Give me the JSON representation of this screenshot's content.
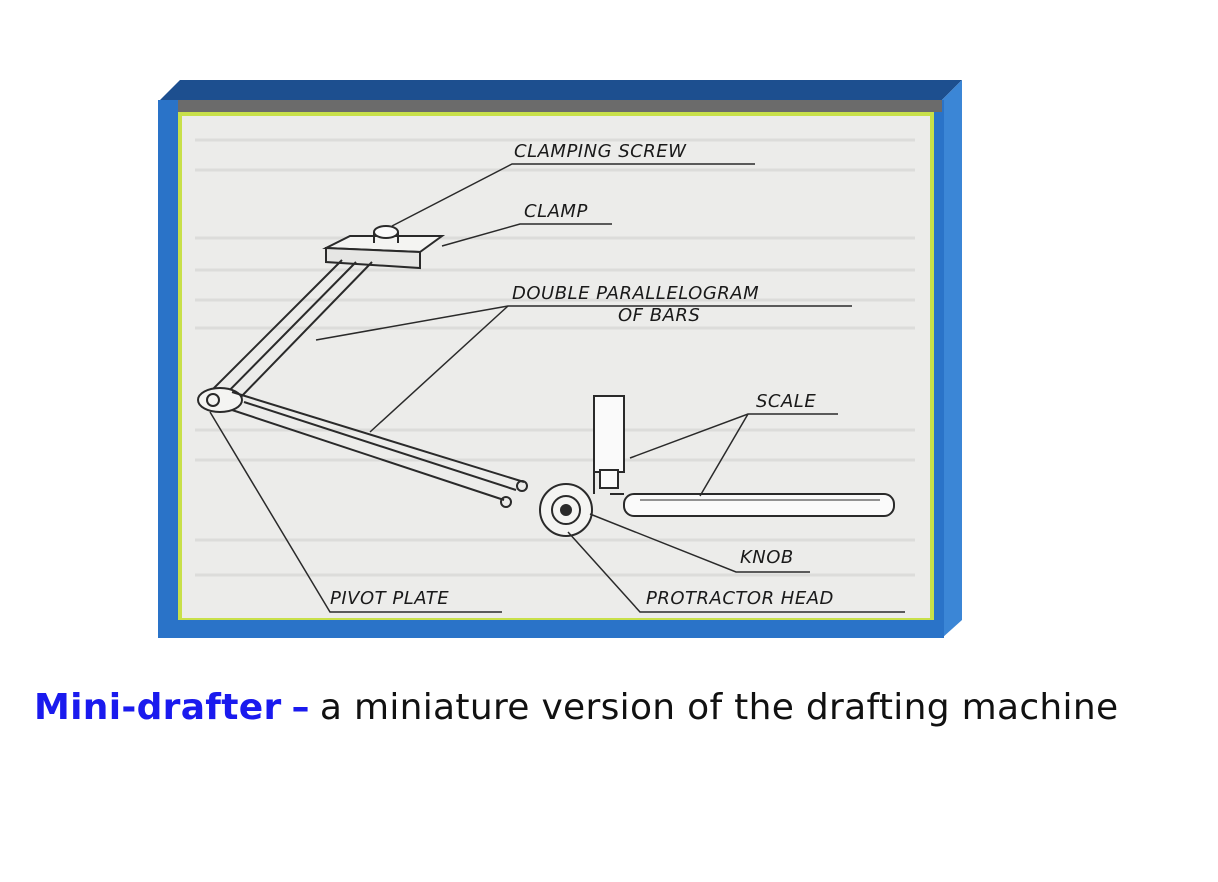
{
  "diagram": {
    "labels": {
      "clamping_screw": "CLAMPING SCREW",
      "clamp": "CLAMP",
      "double_parallelogram_line1": "DOUBLE PARALLELOGRAM",
      "double_parallelogram_line2": "OF BARS",
      "scale": "SCALE",
      "knob": "KNOB",
      "pivot_plate": "PIVOT PLATE",
      "protractor_head": "PROTRACTOR HEAD"
    },
    "colors": {
      "frame_blue": "#2a73c8",
      "frame_dark": "#1d4f8f",
      "frame_grey": "#6b6b6b",
      "frame_lime": "#c8e04a",
      "paper": "#ececea"
    }
  },
  "caption": {
    "term": "Mini-drafter",
    "dash": "–",
    "description": "a miniature version of the drafting machine"
  }
}
